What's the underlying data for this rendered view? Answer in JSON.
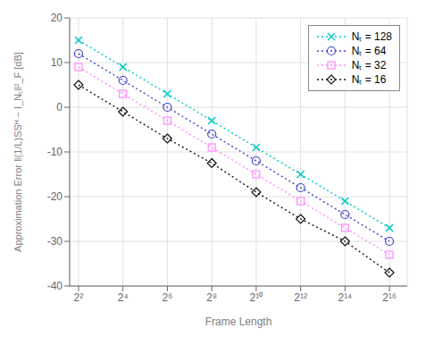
{
  "chart_data": {
    "type": "line",
    "x_label": "Frame Length",
    "y_label": "Approximation Error ‖(1/L)SSᴴ − I_Nₜ‖²_F [dB]",
    "x": [
      4,
      16,
      64,
      256,
      1024,
      4096,
      16384,
      65536
    ],
    "series": [
      {
        "name": "Nₜ = 128",
        "color": "#00C8C8",
        "marker": "x",
        "line_style": "dotted",
        "values": [
          15.0,
          9.0,
          3.0,
          -3.0,
          -9.0,
          -15.0,
          -21.0,
          -27.0
        ]
      },
      {
        "name": "Nₜ = 64",
        "color": "#4040CC",
        "marker": "circle",
        "line_style": "dotted",
        "values": [
          12.0,
          6.0,
          0.0,
          -6.0,
          -12.0,
          -18.0,
          -24.0,
          -30.0
        ]
      },
      {
        "name": "Nₜ = 32",
        "color": "#FF88FF",
        "marker": "square",
        "line_style": "dotted",
        "values": [
          9.0,
          3.0,
          -3.0,
          -9.0,
          -15.0,
          -21.0,
          -27.0,
          -33.0
        ]
      },
      {
        "name": "Nₜ = 16",
        "color": "#111111",
        "marker": "diamond",
        "line_style": "dotted",
        "values": [
          5.0,
          -1.0,
          -7.0,
          -12.5,
          -19.0,
          -25.0,
          -30.0,
          -37.0
        ]
      }
    ],
    "xlim": [
      3.031433133020796,
      114104.8034
    ],
    "xticks": [
      {
        "value": 4,
        "label": "2²"
      },
      {
        "value": 16,
        "label": "2⁴"
      },
      {
        "value": 64,
        "label": "2⁶"
      },
      {
        "value": 256,
        "label": "2⁸"
      },
      {
        "value": 1024,
        "label": "2¹⁰"
      },
      {
        "value": 4096,
        "label": "2¹²"
      },
      {
        "value": 16384,
        "label": "2¹⁴"
      },
      {
        "value": 65536,
        "label": "2¹⁶"
      }
    ],
    "ylim": [
      -40,
      20
    ],
    "yticks": [
      -40,
      -30,
      -20,
      -10,
      0,
      10,
      20
    ],
    "log": "x",
    "grid": true,
    "legend": "upper right"
  }
}
